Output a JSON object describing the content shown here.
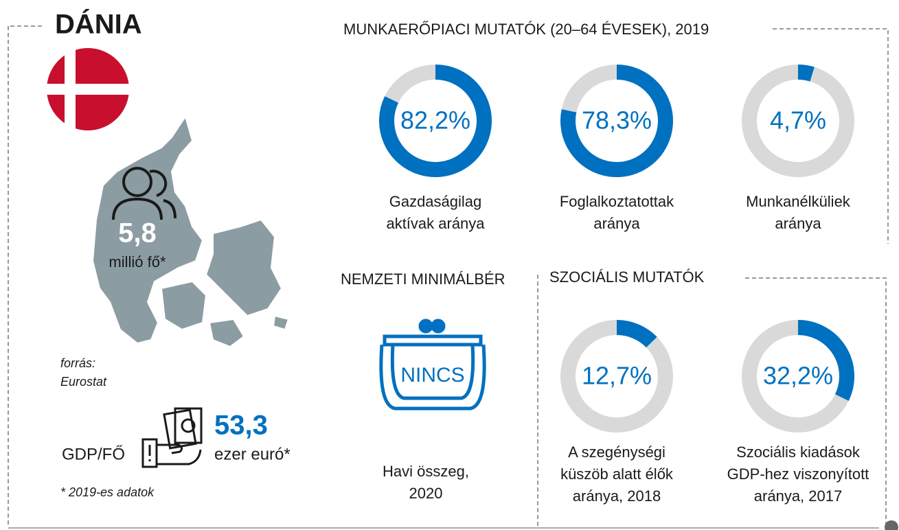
{
  "header": {
    "title": "DÁNIA"
  },
  "population": {
    "value": "5,8",
    "unit": "millió fő*"
  },
  "source": [
    "forrás:",
    "Eurostat"
  ],
  "gdp": {
    "label": "GDP/FŐ",
    "value": "53,3",
    "unit": "ezer euró*"
  },
  "footnote": "* 2019-es adatok",
  "labour": {
    "title": "MUNKAERŐPIACI MUTATÓK (20–64 ÉVESEK), 2019",
    "indicators": [
      {
        "value": 82.2,
        "value_label": "82,2%",
        "label": [
          "Gazdaságilag",
          "aktívak aránya"
        ]
      },
      {
        "value": 78.3,
        "value_label": "78,3%",
        "label": [
          "Foglalkoztatottak",
          "aránya"
        ]
      },
      {
        "value": 4.7,
        "value_label": "4,7%",
        "label": [
          "Munkanélküliek",
          "aránya"
        ]
      }
    ]
  },
  "minimum_wage": {
    "title": "NEMZETI MINIMÁLBÉR",
    "value": "NINCS",
    "label": [
      "Havi összeg,",
      "2020"
    ]
  },
  "social": {
    "title": "SZOCIÁLIS MUTATÓK",
    "indicators": [
      {
        "value": 12.7,
        "value_label": "12,7%",
        "label": [
          "A szegénységi",
          "küszöb alatt élők",
          "aránya, 2018"
        ]
      },
      {
        "value": 32.2,
        "value_label": "32,2%",
        "label": [
          "Szociális kiadások",
          "GDP-hez viszonyított",
          "aránya, 2017"
        ]
      }
    ]
  }
}
